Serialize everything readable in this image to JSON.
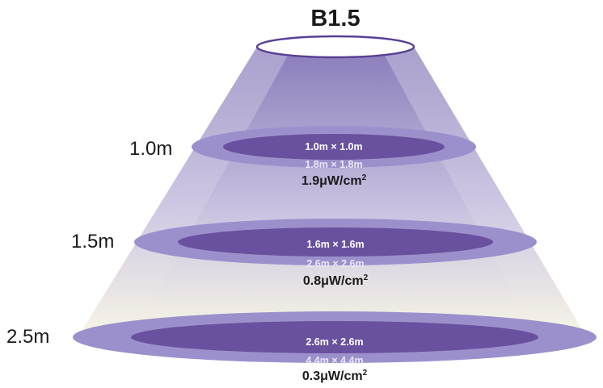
{
  "title": "B1.5",
  "colors": {
    "beam_top": "#8a7cba",
    "beam_fade": "#fbf9e6",
    "outer_ring": "#9c90cc",
    "inner_ring": "#6a519f",
    "lamp_stroke": "#5a3e96"
  },
  "levels": [
    {
      "distance": "1.0m",
      "inner_area": "1.0m × 1.0m",
      "outer_area": "1.8m × 1.8m",
      "irradiance": "1.9μW/cm",
      "irradiance_unit_sup": "2"
    },
    {
      "distance": "1.5m",
      "inner_area": "1.6m × 1.6m",
      "outer_area": "2.6m × 2.6m",
      "irradiance": "0.8μW/cm",
      "irradiance_unit_sup": "2"
    },
    {
      "distance": "2.5m",
      "inner_area": "2.6m × 2.6m",
      "outer_area": "4.4m × 4.4m",
      "irradiance": "0.3μW/cm",
      "irradiance_unit_sup": "2"
    }
  ]
}
